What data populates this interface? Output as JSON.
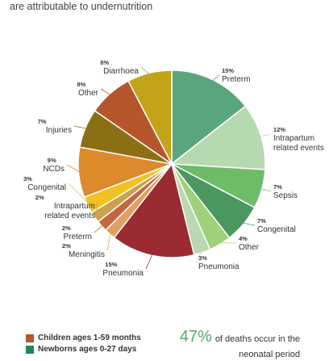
{
  "intro_text": "are attributable to undernutrition",
  "colors": {
    "children_group": "#b5562a",
    "newborn_group": "#1a8a55",
    "stat_green": "#5aa66a"
  },
  "legend": [
    {
      "label": "Children ages 1-59 months",
      "color": "#b5562a"
    },
    {
      "label": "Newborns ages 0-27 days",
      "color": "#1a8a55"
    }
  ],
  "stat": {
    "percent": "47%",
    "text": "of deaths occur in the neonatal period"
  },
  "chart_data": {
    "type": "pie",
    "title": "",
    "slices": [
      {
        "percent_label": "15%",
        "name_lines": [
          "Preterm"
        ],
        "value": 15,
        "group": "Newborns ages 0-27 days",
        "color": "#5aa67c"
      },
      {
        "percent_label": "12%",
        "name_lines": [
          "Intrapartum",
          "related events"
        ],
        "value": 12,
        "group": "Newborns ages 0-27 days",
        "color": "#b7d9b1"
      },
      {
        "percent_label": "7%",
        "name_lines": [
          "Sepsis"
        ],
        "value": 7,
        "group": "Newborns ages 0-27 days",
        "color": "#6fbc68"
      },
      {
        "percent_label": "7%",
        "name_lines": [
          "Congenital"
        ],
        "value": 7,
        "group": "Newborns ages 0-27 days",
        "color": "#4a9760"
      },
      {
        "percent_label": "4%",
        "name_lines": [
          "Other"
        ],
        "value": 4,
        "group": "Newborns ages 0-27 days",
        "color": "#9fd07a"
      },
      {
        "percent_label": "3%",
        "name_lines": [
          "Pneumonia"
        ],
        "value": 3,
        "group": "Newborns ages 0-27 days",
        "color": "#b9d7b1"
      },
      {
        "percent_label": "15%",
        "name_lines": [
          "Pneumonia"
        ],
        "value": 15,
        "group": "Children ages 1-59 months",
        "color": "#9b2a33"
      },
      {
        "percent_label": "2%",
        "name_lines": [
          "Meningitis"
        ],
        "value": 2,
        "group": "Children ages 1-59 months",
        "color": "#e0a062"
      },
      {
        "percent_label": "2%",
        "name_lines": [
          "Preterm"
        ],
        "value": 2,
        "group": "Children ages 1-59 months",
        "color": "#c2673f"
      },
      {
        "percent_label": "2%",
        "name_lines": [
          "Intrapartum",
          "related events"
        ],
        "value": 2,
        "group": "Children ages 1-59 months",
        "color": "#c9a24a"
      },
      {
        "percent_label": "3%",
        "name_lines": [
          "Congenital"
        ],
        "value": 3,
        "group": "Children ages 1-59 months",
        "color": "#f3c221"
      },
      {
        "percent_label": "9%",
        "name_lines": [
          "NCDs"
        ],
        "value": 9,
        "group": "Children ages 1-59 months",
        "color": "#dd8a2d"
      },
      {
        "percent_label": "7%",
        "name_lines": [
          "Injuries"
        ],
        "value": 7,
        "group": "Children ages 1-59 months",
        "color": "#8c6e15"
      },
      {
        "percent_label": "8%",
        "name_lines": [
          "Other"
        ],
        "value": 8,
        "group": "Children ages 1-59 months",
        "color": "#b5562a"
      },
      {
        "percent_label": "8%",
        "name_lines": [
          "Diarrhoea"
        ],
        "value": 8,
        "group": "Children ages 1-59 months",
        "color": "#c3a318"
      }
    ]
  }
}
